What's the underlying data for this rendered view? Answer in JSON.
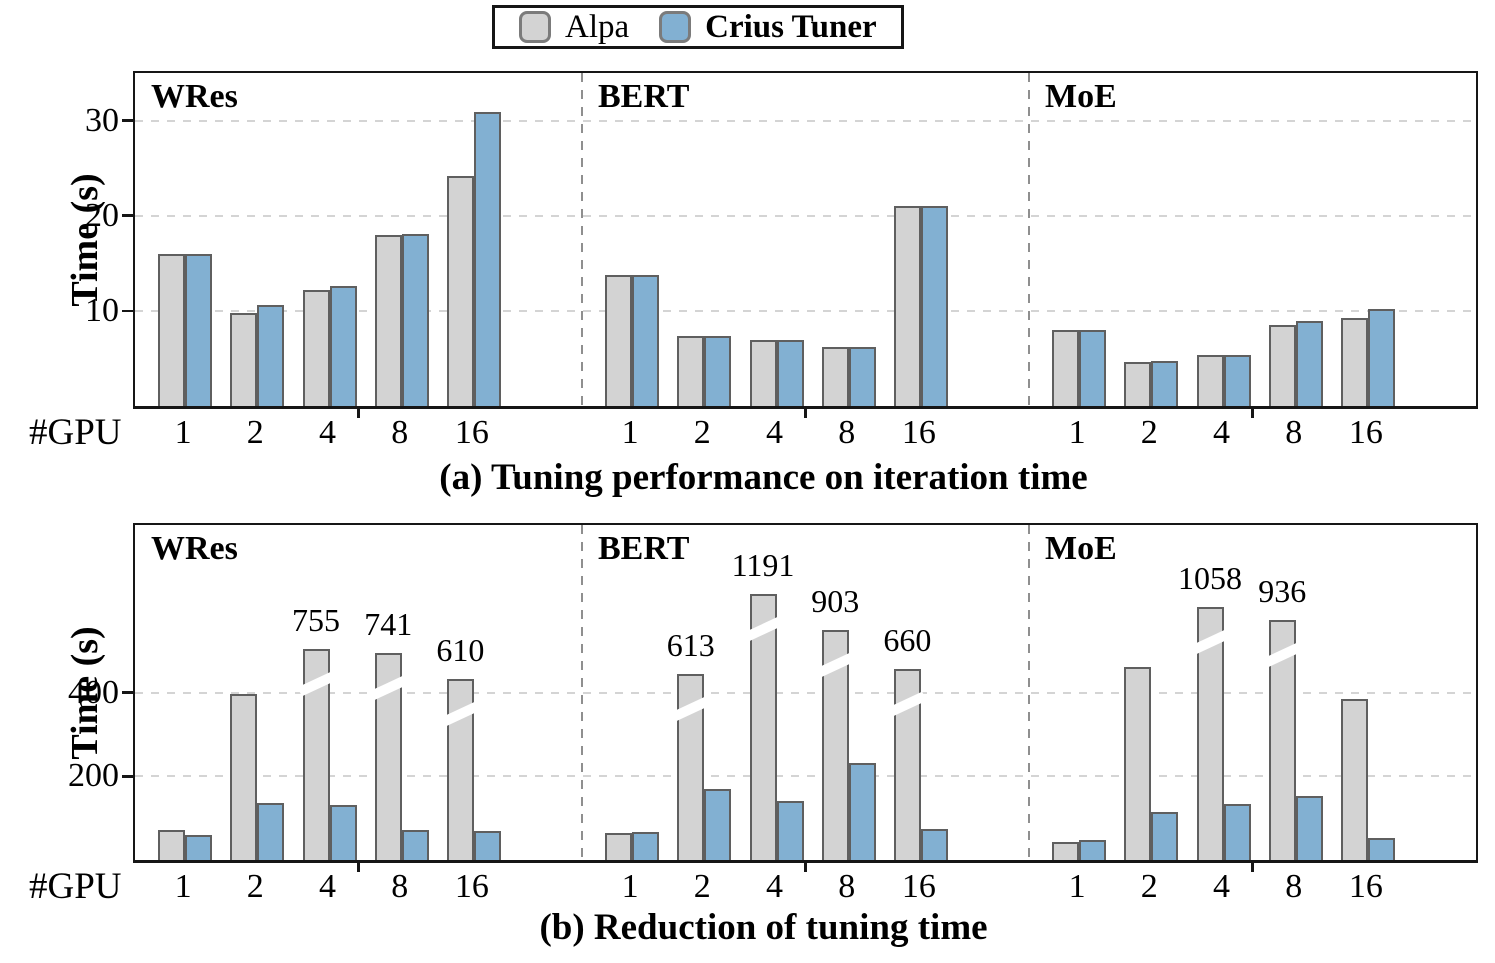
{
  "figure": {
    "background": "#ffffff"
  },
  "legend": {
    "items": [
      {
        "label": "Alpa",
        "color": "#d3d3d3",
        "border": "#7b7b7b",
        "bold": false
      },
      {
        "label": "Crius Tuner",
        "color": "#82b0d2",
        "border": "#7b7b7b",
        "bold": true
      }
    ]
  },
  "colors": {
    "alpa_fill": "#d3d3d3",
    "crius_fill": "#82b0d2",
    "bar_edge": "#5f5f5f",
    "gridline": "#d4d4d4",
    "section_divider": "#8f8f8f",
    "frame": "#161616"
  },
  "chart_data": [
    {
      "id": "a",
      "type": "bar",
      "title": "(a) Tuning performance on iteration time",
      "ylabel": "Time (s)",
      "xlabel": "#GPU",
      "ylim": [
        0,
        35
      ],
      "yticks": [
        10,
        20,
        30
      ],
      "grid": true,
      "legend_position": "top-center",
      "legend_entries": [
        "Alpa",
        "Crius Tuner"
      ],
      "categories": [
        "1",
        "2",
        "4",
        "8",
        "16"
      ],
      "sections": [
        {
          "label": "WRes",
          "series": [
            {
              "name": "Alpa",
              "values": [
                16.0,
                9.8,
                12.2,
                18.0,
                24.2
              ]
            },
            {
              "name": "Crius Tuner",
              "values": [
                16.0,
                10.6,
                12.6,
                18.1,
                30.9
              ]
            }
          ]
        },
        {
          "label": "BERT",
          "series": [
            {
              "name": "Alpa",
              "values": [
                13.8,
                7.4,
                6.9,
                6.2,
                21.0
              ]
            },
            {
              "name": "Crius Tuner",
              "values": [
                13.8,
                7.4,
                6.9,
                6.2,
                21.0
              ]
            }
          ]
        },
        {
          "label": "MoE",
          "series": [
            {
              "name": "Alpa",
              "values": [
                8.0,
                4.6,
                5.4,
                8.5,
                9.3
              ]
            },
            {
              "name": "Crius Tuner",
              "values": [
                8.0,
                4.7,
                5.4,
                8.9,
                10.2
              ]
            }
          ]
        }
      ]
    },
    {
      "id": "b",
      "type": "bar",
      "title": "(b) Reduction of tuning time",
      "ylabel": "Time (s)",
      "xlabel": "#GPU",
      "ylim": [
        0,
        800
      ],
      "yticks": [
        200,
        400
      ],
      "grid": true,
      "categories": [
        "1",
        "2",
        "4",
        "8",
        "16"
      ],
      "sections": [
        {
          "label": "WRes",
          "series": [
            {
              "name": "Alpa",
              "values": [
                71,
                397,
                755,
                741,
                610
              ],
              "display": [
                71,
                397,
                505,
                494,
                432
              ],
              "annotations": [
                "",
                "",
                "755",
                "741",
                "610"
              ],
              "axis_breaks": [
                false,
                false,
                true,
                true,
                true
              ]
            },
            {
              "name": "Crius Tuner",
              "values": [
                59,
                135,
                132,
                71,
                69
              ]
            }
          ]
        },
        {
          "label": "BERT",
          "series": [
            {
              "name": "Alpa",
              "values": [
                64,
                613,
                1191,
                903,
                660
              ],
              "display": [
                64,
                445,
                635,
                549,
                456
              ],
              "annotations": [
                "",
                "613",
                "1191",
                "903",
                "660"
              ],
              "axis_breaks": [
                false,
                true,
                true,
                true,
                true
              ]
            },
            {
              "name": "Crius Tuner",
              "values": [
                67,
                170,
                140,
                231,
                74
              ]
            }
          ]
        },
        {
          "label": "MoE",
          "series": [
            {
              "name": "Alpa",
              "values": [
                43,
                462,
                1058,
                936,
                384
              ],
              "display": [
                43,
                462,
                605,
                574,
                384
              ],
              "annotations": [
                "",
                "",
                "1058",
                "936",
                ""
              ],
              "axis_breaks": [
                false,
                false,
                true,
                true,
                false
              ]
            },
            {
              "name": "Crius Tuner",
              "values": [
                47,
                114,
                134,
                153,
                53
              ]
            }
          ]
        }
      ]
    }
  ]
}
